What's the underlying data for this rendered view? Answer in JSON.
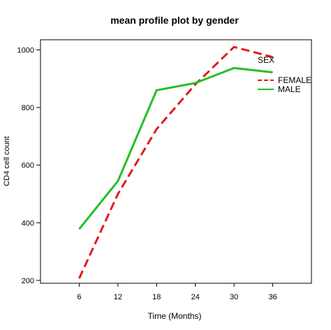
{
  "chart_data": {
    "type": "line",
    "title": "mean profile plot by gender",
    "xlabel": "Time (Months)",
    "ylabel": "CD4 cell count",
    "categories": [
      "6",
      "12",
      "18",
      "24",
      "30",
      "36"
    ],
    "x": [
      6,
      12,
      18,
      24,
      30,
      36
    ],
    "xlim": [
      0,
      42
    ],
    "ylim": [
      190,
      1035
    ],
    "yticks": [
      200,
      400,
      600,
      800,
      1000
    ],
    "grid": false,
    "legend": {
      "title": "SEX",
      "placement": "top-right"
    },
    "series": [
      {
        "name": "FEMALE",
        "values": [
          207,
          500,
          725,
          880,
          1010,
          975
        ],
        "color": "#e31a1c",
        "dash": "dashed"
      },
      {
        "name": "MALE",
        "values": [
          378,
          545,
          860,
          885,
          937,
          922
        ],
        "color": "#22c022",
        "dash": "solid"
      }
    ]
  }
}
